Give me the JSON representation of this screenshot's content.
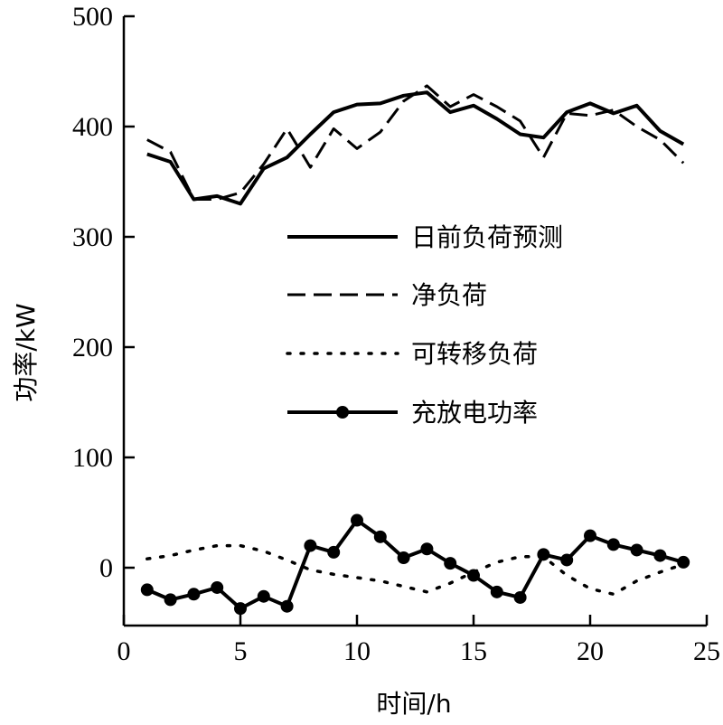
{
  "chart_data": {
    "type": "line",
    "xlabel": "时间/h",
    "ylabel": "功率/kW",
    "xlim": [
      0,
      25
    ],
    "ylim": [
      -55,
      500
    ],
    "xticks": [
      0,
      5,
      10,
      15,
      20,
      25
    ],
    "yticks": [
      0,
      100,
      200,
      300,
      400,
      500
    ],
    "grid": false,
    "legend_position": "center-right",
    "x": [
      1,
      2,
      3,
      4,
      5,
      6,
      7,
      8,
      9,
      10,
      11,
      12,
      13,
      14,
      15,
      16,
      17,
      18,
      19,
      20,
      21,
      22,
      23,
      24
    ],
    "series": [
      {
        "name": "日前负荷预测",
        "style": "solid",
        "values": [
          375,
          368,
          334,
          337,
          330,
          362,
          372,
          393,
          413,
          420,
          421,
          428,
          431,
          413,
          419,
          407,
          393,
          390,
          413,
          421,
          412,
          419,
          396,
          384
        ]
      },
      {
        "name": "净负荷",
        "style": "dashed",
        "values": [
          388,
          377,
          334,
          334,
          340,
          366,
          398,
          363,
          398,
          380,
          395,
          423,
          437,
          418,
          429,
          418,
          405,
          372,
          412,
          410,
          415,
          400,
          388,
          367
        ]
      },
      {
        "name": "可转移负荷",
        "style": "dotted",
        "x": [
          1,
          2,
          3,
          4,
          5,
          6,
          7,
          8,
          9,
          10,
          11,
          12,
          13,
          14,
          15,
          16,
          17,
          18,
          19,
          20,
          21,
          22,
          23,
          24
        ],
        "values": [
          8,
          11,
          16,
          20,
          20,
          15,
          7,
          -2,
          -6,
          -9,
          -12,
          -17,
          -22,
          -14,
          -4,
          5,
          10,
          10,
          -7,
          -19,
          -24,
          -12,
          -4,
          3
        ]
      },
      {
        "name": "充放电功率",
        "style": "solid-marker",
        "values": [
          -20,
          -29,
          -24,
          -18,
          -37,
          -26,
          -35,
          20,
          14,
          43,
          28,
          9,
          17,
          4,
          -7,
          -22,
          -27,
          12,
          7,
          29,
          21,
          16,
          11,
          5
        ]
      }
    ]
  }
}
